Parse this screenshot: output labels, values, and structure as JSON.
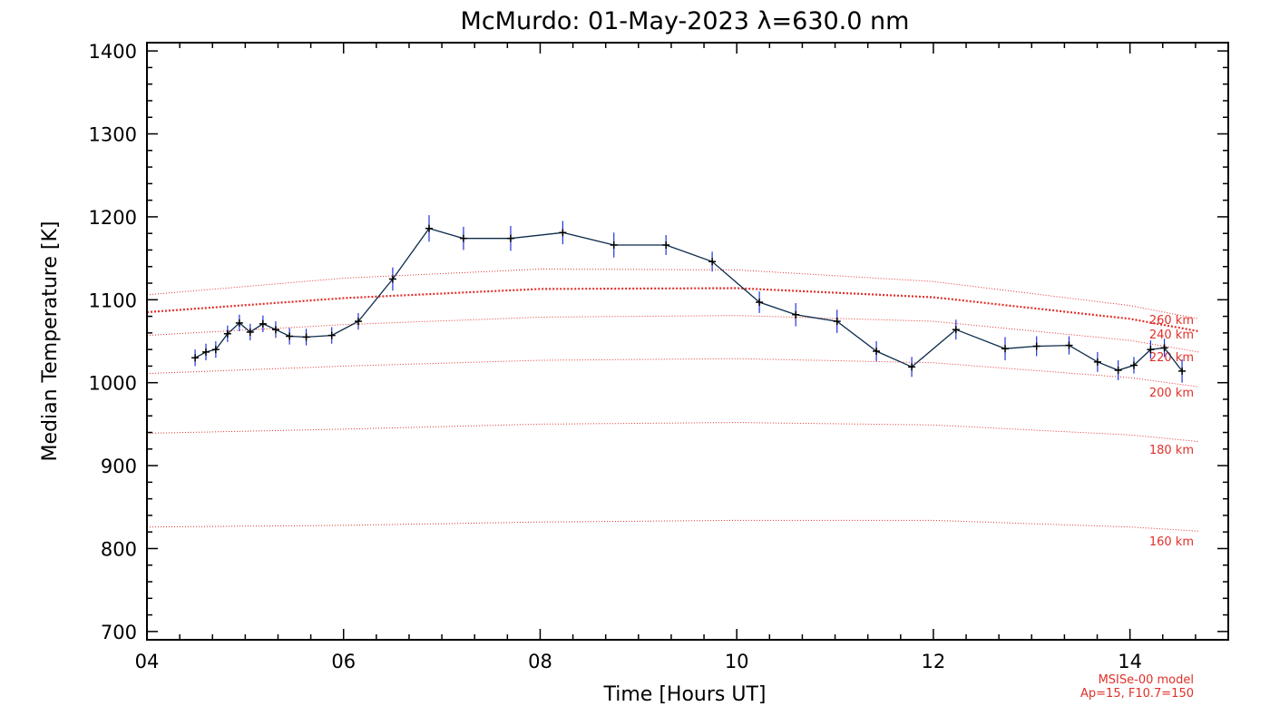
{
  "chart_data": {
    "type": "line",
    "title": "McMurdo: 01-May-2023 λ=630.0 nm",
    "xlabel": "Time [Hours UT]",
    "ylabel": "Median Temperature [K]",
    "xlim": [
      4,
      15
    ],
    "ylim": [
      690,
      1410
    ],
    "x_ticks": [
      4,
      6,
      8,
      10,
      12,
      14
    ],
    "x_tick_labels": [
      "04",
      "06",
      "08",
      "10",
      "12",
      "14"
    ],
    "y_ticks": [
      700,
      800,
      900,
      1000,
      1100,
      1200,
      1300,
      1400
    ],
    "y_tick_labels": [
      "700",
      "800",
      "900",
      "1000",
      "1100",
      "1200",
      "1300",
      "1400"
    ],
    "colors": {
      "data_line": "#0a2a4a",
      "error_bar": "#2233dd",
      "marker": "#000000",
      "model": "#e0302a",
      "axis": "#000000"
    },
    "series": [
      {
        "name": "Median Temperature",
        "x": [
          4.49,
          4.6,
          4.7,
          4.82,
          4.94,
          5.05,
          5.18,
          5.31,
          5.45,
          5.62,
          5.88,
          6.15,
          6.5,
          6.87,
          7.22,
          7.7,
          8.23,
          8.75,
          9.28,
          9.75,
          10.23,
          10.6,
          11.02,
          11.42,
          11.78,
          12.23,
          12.73,
          13.05,
          13.38,
          13.67,
          13.88,
          14.04,
          14.21,
          14.35,
          14.53
        ],
        "y": [
          1030,
          1037,
          1040,
          1059,
          1072,
          1061,
          1071,
          1064,
          1056,
          1055,
          1057,
          1074,
          1125,
          1186,
          1174,
          1174,
          1181,
          1166,
          1166,
          1146,
          1097,
          1082,
          1074,
          1038,
          1019,
          1064,
          1041,
          1044,
          1045,
          1025,
          1015,
          1021,
          1040,
          1042,
          1014
        ],
        "y_error": [
          10,
          10,
          10,
          10,
          10,
          10,
          10,
          10,
          10,
          10,
          10,
          10,
          14,
          16,
          14,
          15,
          14,
          15,
          12,
          12,
          13,
          14,
          14,
          12,
          12,
          12,
          14,
          12,
          11,
          12,
          12,
          10,
          11,
          11,
          14
        ]
      }
    ],
    "model_curves": [
      {
        "label": "160 km",
        "x": [
          4,
          6,
          8,
          10,
          12,
          14,
          14.7
        ],
        "y": [
          826,
          828,
          832,
          834,
          834,
          826,
          821
        ]
      },
      {
        "label": "180 km",
        "x": [
          4,
          6,
          8,
          10,
          12,
          14,
          14.7
        ],
        "y": [
          939,
          944,
          950,
          952,
          949,
          937,
          929
        ]
      },
      {
        "label": "200 km",
        "x": [
          4,
          6,
          8,
          10,
          12,
          14,
          14.7
        ],
        "y": [
          1011,
          1020,
          1027,
          1029,
          1024,
          1006,
          995
        ]
      },
      {
        "label": "220 km",
        "x": [
          4,
          6,
          8,
          10,
          12,
          14,
          14.7
        ],
        "y": [
          1057,
          1070,
          1079,
          1081,
          1074,
          1051,
          1037
        ]
      },
      {
        "label": "240 km",
        "x": [
          4,
          6,
          8,
          10,
          12,
          14,
          14.7
        ],
        "y": [
          1085,
          1102,
          1113,
          1114,
          1103,
          1077,
          1062
        ]
      },
      {
        "label": "260 km",
        "x": [
          4,
          6,
          8,
          10,
          12,
          14,
          14.7
        ],
        "y": [
          1106,
          1126,
          1137,
          1136,
          1122,
          1093,
          1077
        ]
      }
    ],
    "model_label_order_top_to_bottom": [
      "260 km",
      "240 km",
      "220 km",
      "200 km",
      "180 km",
      "160 km"
    ],
    "footnote_lines": [
      "MSISe-00 model",
      "Ap=15, F10.7=150"
    ]
  }
}
